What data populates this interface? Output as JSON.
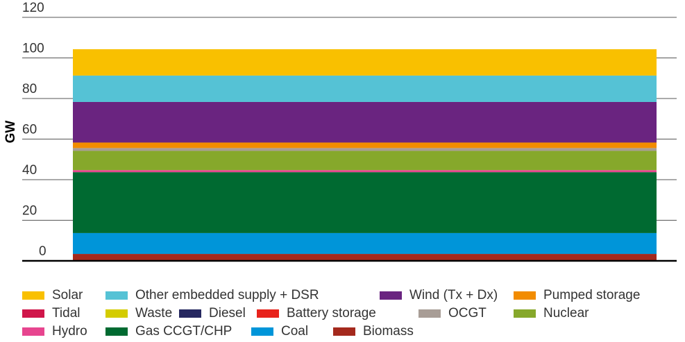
{
  "chart_data": {
    "type": "stacked_bar",
    "ylabel": "GW",
    "categories": [
      null
    ],
    "ylim": [
      0,
      120
    ],
    "yticks": [
      0,
      20,
      40,
      60,
      80,
      100,
      120
    ],
    "grid": true,
    "series": [
      {
        "name": "Solar",
        "color": "#f9c000",
        "values": [
          13
        ]
      },
      {
        "name": "Other embedded supply + DSR",
        "color": "#55c2d5",
        "values": [
          13
        ]
      },
      {
        "name": "Wind (Tx + Dx)",
        "color": "#6a2480",
        "values": [
          20
        ]
      },
      {
        "name": "Pumped storage",
        "color": "#f28c00",
        "values": [
          2.7
        ]
      },
      {
        "name": "Tidal",
        "color": "#d0164a",
        "values": [
          0
        ]
      },
      {
        "name": "Waste",
        "color": "#d4cc00",
        "values": [
          0
        ]
      },
      {
        "name": "Diesel",
        "color": "#262860",
        "values": [
          0
        ]
      },
      {
        "name": "Battery storage",
        "color": "#e8231c",
        "values": [
          0
        ]
      },
      {
        "name": "OCGT",
        "color": "#a89d96",
        "values": [
          1.4
        ]
      },
      {
        "name": "Nuclear",
        "color": "#86a82b",
        "values": [
          9.5
        ]
      },
      {
        "name": "Hydro",
        "color": "#e7458f",
        "values": [
          1
        ]
      },
      {
        "name": "Gas CCGT/CHP",
        "color": "#006a31",
        "values": [
          30
        ]
      },
      {
        "name": "Coal",
        "color": "#0095d9",
        "values": [
          10.3
        ]
      },
      {
        "name": "Biomass",
        "color": "#a4291d",
        "values": [
          3.4
        ]
      }
    ]
  }
}
